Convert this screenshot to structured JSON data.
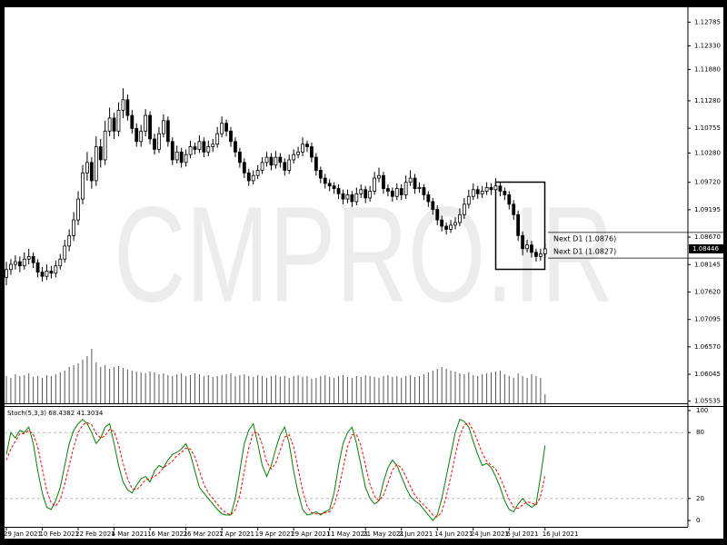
{
  "chart_data": {
    "type": "candlestick",
    "watermark": "CMPRO.IR",
    "categories": [
      "29 Jan 2021",
      null,
      null,
      null,
      null,
      null,
      null,
      null,
      "10 Feb 2021",
      null,
      null,
      null,
      null,
      null,
      null,
      null,
      "22 Feb 2021",
      null,
      null,
      null,
      null,
      null,
      null,
      null,
      "4 Mar 2021",
      null,
      null,
      null,
      null,
      null,
      null,
      null,
      "16 Mar 2021",
      null,
      null,
      null,
      null,
      null,
      null,
      null,
      "26 Mar 2021",
      null,
      null,
      null,
      null,
      null,
      null,
      null,
      "7 Apr 2021",
      null,
      null,
      null,
      null,
      null,
      null,
      null,
      "19 Apr 2021",
      null,
      null,
      null,
      null,
      null,
      null,
      null,
      "29 Apr 2021",
      null,
      null,
      null,
      null,
      null,
      null,
      null,
      "11 May 2021",
      null,
      null,
      null,
      null,
      null,
      null,
      null,
      "21 May 2021",
      null,
      null,
      null,
      null,
      null,
      null,
      null,
      "2 Jun 2021",
      null,
      null,
      null,
      null,
      null,
      null,
      null,
      "14 Jun 2021",
      null,
      null,
      null,
      null,
      null,
      null,
      null,
      "24 Jun 2021",
      null,
      null,
      null,
      null,
      null,
      null,
      null,
      "6 Jul 2021",
      null,
      null,
      null,
      null,
      null,
      null,
      null,
      "16 Jul 2021"
    ],
    "ohlc": [
      [
        1.079,
        1.082,
        1.0775,
        1.0805
      ],
      [
        1.0805,
        1.0825,
        1.0795,
        1.0815
      ],
      [
        1.0815,
        1.0832,
        1.0805,
        1.082
      ],
      [
        1.082,
        1.083,
        1.08,
        1.0812
      ],
      [
        1.0812,
        1.0838,
        1.0805,
        1.0825
      ],
      [
        1.0825,
        1.0845,
        1.0815,
        1.083
      ],
      [
        1.083,
        1.0838,
        1.0808,
        1.0818
      ],
      [
        1.0818,
        1.0825,
        1.079,
        1.08
      ],
      [
        1.08,
        1.081,
        1.0782,
        1.0792
      ],
      [
        1.0792,
        1.0815,
        1.0785,
        1.0802
      ],
      [
        1.0802,
        1.0812,
        1.0788,
        1.0798
      ],
      [
        1.0798,
        1.0822,
        1.079,
        1.0812
      ],
      [
        1.0812,
        1.0835,
        1.0805,
        1.0825
      ],
      [
        1.0825,
        1.0862,
        1.0818,
        1.085
      ],
      [
        1.085,
        1.0882,
        1.084,
        1.087
      ],
      [
        1.087,
        1.0915,
        1.086,
        1.09
      ],
      [
        1.09,
        1.0955,
        1.089,
        1.094
      ],
      [
        1.094,
        1.1005,
        1.093,
        1.099
      ],
      [
        1.099,
        1.103,
        1.0975,
        1.101
      ],
      [
        1.101,
        1.102,
        1.096,
        1.0975
      ],
      [
        1.0975,
        1.106,
        1.0965,
        1.104
      ],
      [
        1.104,
        1.1055,
        1.1,
        1.1015
      ],
      [
        1.1015,
        1.109,
        1.1005,
        1.107
      ],
      [
        1.107,
        1.1115,
        1.106,
        1.1095
      ],
      [
        1.1095,
        1.1105,
        1.1055,
        1.107
      ],
      [
        1.107,
        1.1125,
        1.106,
        1.111
      ],
      [
        1.111,
        1.1152,
        1.1095,
        1.113
      ],
      [
        1.113,
        1.114,
        1.109,
        1.11
      ],
      [
        1.11,
        1.111,
        1.1065,
        1.1075
      ],
      [
        1.1075,
        1.1085,
        1.104,
        1.105
      ],
      [
        1.105,
        1.1082,
        1.104,
        1.107
      ],
      [
        1.107,
        1.1112,
        1.106,
        1.11
      ],
      [
        1.11,
        1.1108,
        1.1045,
        1.1055
      ],
      [
        1.1055,
        1.1065,
        1.1025,
        1.1035
      ],
      [
        1.1035,
        1.1078,
        1.1028,
        1.1065
      ],
      [
        1.1065,
        1.1102,
        1.1058,
        1.109
      ],
      [
        1.109,
        1.1098,
        1.104,
        1.105
      ],
      [
        1.105,
        1.1058,
        1.1005,
        1.1015
      ],
      [
        1.1015,
        1.1042,
        1.1008,
        1.103
      ],
      [
        1.103,
        1.1038,
        1.1,
        1.101
      ],
      [
        1.101,
        1.1035,
        1.1002,
        1.1025
      ],
      [
        1.1025,
        1.1052,
        1.1018,
        1.104
      ],
      [
        1.104,
        1.1048,
        1.1025,
        1.1035
      ],
      [
        1.1035,
        1.1062,
        1.1028,
        1.105
      ],
      [
        1.105,
        1.1058,
        1.102,
        1.103
      ],
      [
        1.103,
        1.1052,
        1.1022,
        1.104
      ],
      [
        1.104,
        1.1055,
        1.103,
        1.1045
      ],
      [
        1.1045,
        1.1078,
        1.1038,
        1.1065
      ],
      [
        1.1065,
        1.1098,
        1.1058,
        1.1085
      ],
      [
        1.1085,
        1.1092,
        1.106,
        1.107
      ],
      [
        1.107,
        1.1078,
        1.104,
        1.105
      ],
      [
        1.105,
        1.1058,
        1.102,
        1.103
      ],
      [
        1.103,
        1.1038,
        1.1,
        1.101
      ],
      [
        1.101,
        1.1018,
        1.098,
        1.099
      ],
      [
        1.099,
        1.0998,
        1.0965,
        1.0975
      ],
      [
        1.0975,
        1.0995,
        1.0968,
        1.0985
      ],
      [
        1.0985,
        1.1005,
        1.0978,
        1.0995
      ],
      [
        1.0995,
        1.102,
        1.0988,
        1.101
      ],
      [
        1.101,
        1.103,
        1.1002,
        1.102
      ],
      [
        1.102,
        1.1028,
        1.0995,
        1.1005
      ],
      [
        1.1005,
        1.1032,
        1.0998,
        1.102
      ],
      [
        1.102,
        1.1028,
        1.1,
        1.101
      ],
      [
        1.101,
        1.1018,
        1.0985,
        1.0995
      ],
      [
        1.0995,
        1.1025,
        1.0988,
        1.1015
      ],
      [
        1.1015,
        1.1035,
        1.1008,
        1.1025
      ],
      [
        1.1025,
        1.104,
        1.1018,
        1.103
      ],
      [
        1.103,
        1.1058,
        1.1022,
        1.1045
      ],
      [
        1.1045,
        1.1052,
        1.103,
        1.104
      ],
      [
        1.104,
        1.1048,
        1.101,
        1.102
      ],
      [
        1.102,
        1.1028,
        1.0985,
        1.0995
      ],
      [
        1.0995,
        1.1002,
        1.097,
        1.098
      ],
      [
        1.098,
        1.0988,
        1.096,
        1.097
      ],
      [
        1.097,
        1.0978,
        1.0955,
        1.0965
      ],
      [
        1.0965,
        1.0972,
        1.095,
        1.096
      ],
      [
        1.096,
        1.0968,
        1.094,
        1.095
      ],
      [
        1.095,
        1.0958,
        1.093,
        1.094
      ],
      [
        1.094,
        1.0958,
        1.0932,
        1.0948
      ],
      [
        1.0948,
        1.0955,
        1.0925,
        1.0935
      ],
      [
        1.0935,
        1.0962,
        1.0928,
        1.095
      ],
      [
        1.095,
        1.0968,
        1.0942,
        1.0958
      ],
      [
        1.0958,
        1.0965,
        1.0932,
        1.0942
      ],
      [
        1.0942,
        1.0965,
        1.0935,
        1.0955
      ],
      [
        1.0955,
        1.0992,
        1.0948,
        1.098
      ],
      [
        1.098,
        1.1,
        1.0972,
        1.0985
      ],
      [
        1.0985,
        1.0992,
        1.095,
        1.096
      ],
      [
        1.096,
        1.0968,
        1.0945,
        1.0955
      ],
      [
        1.0955,
        1.0962,
        1.0935,
        1.0945
      ],
      [
        1.0945,
        1.097,
        1.0938,
        1.096
      ],
      [
        1.096,
        1.0968,
        1.0938,
        1.0948
      ],
      [
        1.0948,
        1.0985,
        1.094,
        1.0972
      ],
      [
        1.0972,
        1.0995,
        1.0965,
        1.098
      ],
      [
        1.098,
        1.0988,
        1.095,
        1.096
      ],
      [
        1.096,
        1.0972,
        1.0952,
        1.0962
      ],
      [
        1.0962,
        1.0968,
        1.0938,
        1.0948
      ],
      [
        1.0948,
        1.0955,
        1.0925,
        1.0935
      ],
      [
        1.0935,
        1.0942,
        1.091,
        1.092
      ],
      [
        1.092,
        1.0928,
        1.089,
        1.09
      ],
      [
        1.09,
        1.0908,
        1.0878,
        1.0888
      ],
      [
        1.0888,
        1.0895,
        1.0872,
        1.0882
      ],
      [
        1.0882,
        1.09,
        1.0875,
        1.089
      ],
      [
        1.089,
        1.0905,
        1.0882,
        1.0895
      ],
      [
        1.0895,
        1.0922,
        1.0888,
        1.091
      ],
      [
        1.091,
        1.0942,
        1.0902,
        1.093
      ],
      [
        1.093,
        1.0958,
        1.0922,
        1.0945
      ],
      [
        1.0945,
        1.097,
        1.0938,
        1.0958
      ],
      [
        1.0958,
        1.0965,
        1.094,
        1.095
      ],
      [
        1.095,
        1.0965,
        1.0942,
        1.0955
      ],
      [
        1.0955,
        1.0972,
        1.0948,
        1.0962
      ],
      [
        1.0962,
        1.097,
        1.0948,
        1.0958
      ],
      [
        1.0958,
        1.098,
        1.095,
        1.0965
      ],
      [
        1.0965,
        1.0972,
        1.0945,
        1.0955
      ],
      [
        1.0955,
        1.0962,
        1.0938,
        1.0948
      ],
      [
        1.0948,
        1.0955,
        1.092,
        1.093
      ],
      [
        1.093,
        1.0938,
        1.09,
        1.091
      ],
      [
        1.091,
        1.0918,
        1.086,
        1.087
      ],
      [
        1.087,
        1.0878,
        1.0832,
        1.0845
      ],
      [
        1.0845,
        1.0862,
        1.0838,
        1.0852
      ],
      [
        1.0852,
        1.086,
        1.0828,
        1.0838
      ],
      [
        1.0838,
        1.0845,
        1.082,
        1.083
      ],
      [
        1.083,
        1.0845,
        1.0822,
        1.0835
      ],
      [
        1.0835,
        1.0855,
        1.0828,
        1.08446
      ]
    ],
    "volume": [
      30,
      28,
      32,
      30,
      31,
      33,
      29,
      30,
      28,
      31,
      30,
      32,
      34,
      36,
      40,
      42,
      44,
      48,
      52,
      60,
      45,
      40,
      42,
      38,
      40,
      41,
      39,
      37,
      36,
      35,
      34,
      33,
      35,
      34,
      32,
      33,
      31,
      30,
      32,
      33,
      30,
      31,
      33,
      32,
      30,
      31,
      29,
      30,
      31,
      32,
      33,
      30,
      31,
      32,
      30,
      29,
      31,
      30,
      28,
      30,
      31,
      29,
      30,
      28,
      30,
      31,
      29,
      30,
      27,
      28,
      30,
      31,
      29,
      28,
      30,
      31,
      29,
      28,
      30,
      29,
      31,
      30,
      29,
      28,
      30,
      31,
      29,
      30,
      28,
      30,
      31,
      29,
      30,
      32,
      34,
      36,
      38,
      40,
      38,
      36,
      35,
      33,
      32,
      34,
      31,
      30,
      32,
      33,
      34,
      35,
      36,
      32,
      30,
      28,
      33,
      30,
      28,
      32,
      30,
      28,
      10
    ],
    "volume_lim": [
      0,
      100
    ],
    "ylim": [
      1.0549,
      1.1307
    ],
    "yticks": [
      1.12785,
      {
        "value": 1.1233,
        "label": "1.12330"
      },
      {
        "value": 1.1188,
        "label": "1.11880"
      },
      {
        "value": 1.1128,
        "label": "1.11280"
      },
      1.10755,
      {
        "value": 1.1028,
        "label": "1.10280"
      },
      {
        "value": 1.0972,
        "label": "1.09720"
      },
      1.09195,
      {
        "value": 1.0867,
        "label": "1.08670"
      },
      1.08145,
      {
        "value": 1.0762,
        "label": "1.07620"
      },
      1.07095,
      {
        "value": 1.0657,
        "label": "1.06570"
      },
      1.06045,
      1.05535
    ],
    "current_price": 1.08446,
    "annotations": [
      {
        "text": "Next D1 (1.0876)",
        "value": 1.0876
      },
      {
        "text": "Next D1 (1.0827)",
        "value": 1.0827
      }
    ],
    "stoch": {
      "label": "Stoch(5,3,3) 68.4382 41.3034",
      "ylim": [
        0,
        100
      ],
      "yticks": [
        100,
        80,
        20,
        0
      ],
      "levels": [
        80,
        20
      ],
      "series": [
        {
          "name": "Main",
          "color": "#008000",
          "values": [
            60,
            80,
            75,
            82,
            80,
            85,
            70,
            45,
            25,
            12,
            10,
            18,
            30,
            50,
            70,
            82,
            88,
            92,
            88,
            80,
            70,
            75,
            85,
            88,
            70,
            50,
            35,
            28,
            25,
            32,
            38,
            40,
            35,
            45,
            50,
            48,
            55,
            60,
            62,
            65,
            70,
            60,
            45,
            30,
            25,
            20,
            15,
            10,
            6,
            5,
            5,
            20,
            45,
            70,
            82,
            88,
            70,
            50,
            40,
            50,
            65,
            78,
            85,
            70,
            45,
            25,
            10,
            5,
            6,
            8,
            5,
            8,
            10,
            25,
            50,
            70,
            80,
            85,
            70,
            50,
            30,
            20,
            15,
            18,
            35,
            48,
            55,
            50,
            40,
            30,
            22,
            18,
            15,
            10,
            5,
            0,
            5,
            20,
            40,
            60,
            80,
            92,
            90,
            85,
            72,
            60,
            50,
            52,
            48,
            40,
            30,
            18,
            10,
            8,
            15,
            20,
            15,
            12,
            15,
            40,
            68.4382
          ]
        },
        {
          "name": "Signal",
          "color": "#ff0000",
          "values": [
            55,
            65,
            72,
            79,
            79,
            82,
            78,
            67,
            47,
            27,
            16,
            13,
            19,
            33,
            50,
            67,
            80,
            87,
            89,
            87,
            79,
            75,
            77,
            83,
            81,
            69,
            52,
            38,
            29,
            28,
            32,
            37,
            38,
            40,
            43,
            48,
            51,
            54,
            59,
            62,
            66,
            65,
            58,
            45,
            33,
            25,
            20,
            15,
            10,
            7,
            5,
            10,
            23,
            45,
            66,
            80,
            80,
            69,
            53,
            47,
            52,
            64,
            76,
            78,
            67,
            47,
            27,
            13,
            7,
            6,
            6,
            7,
            8,
            14,
            28,
            48,
            67,
            78,
            78,
            68,
            50,
            33,
            22,
            18,
            23,
            34,
            46,
            51,
            48,
            40,
            31,
            23,
            18,
            14,
            10,
            5,
            3,
            8,
            22,
            40,
            60,
            77,
            87,
            89,
            82,
            72,
            61,
            54,
            50,
            47,
            39,
            29,
            19,
            12,
            11,
            14,
            17,
            16,
            14,
            22,
            41.3034
          ]
        }
      ]
    }
  }
}
